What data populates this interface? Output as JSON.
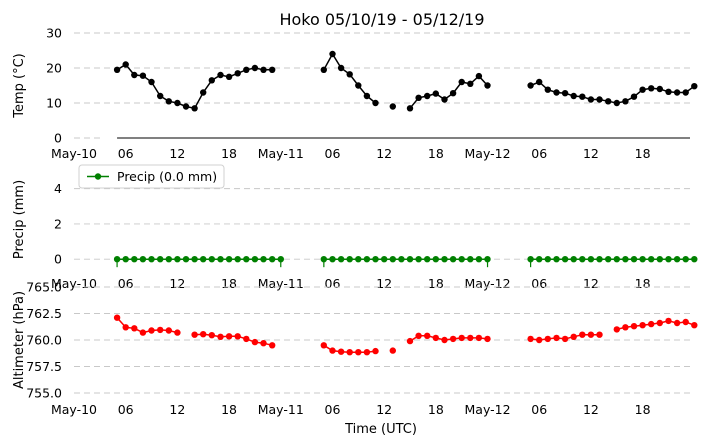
{
  "chart_data": {
    "type": "line",
    "title": "Hoko 05/10/19 - 05/12/19",
    "xlabel": "Time (UTC)",
    "x_tick_labels": [
      "May-10",
      "06",
      "12",
      "18",
      "May-11",
      "06",
      "12",
      "18",
      "May-12",
      "06",
      "12",
      "18"
    ],
    "x_tick_hours": [
      0,
      6,
      12,
      18,
      24,
      30,
      36,
      42,
      48,
      54,
      60,
      66
    ],
    "xlim_hours": [
      0,
      71.5
    ],
    "time_unit": "hours since May-10 00:00 UTC",
    "panels": [
      {
        "name": "temp",
        "ylabel": "Temp (°C)",
        "ylim": [
          0,
          30
        ],
        "yticks": [
          0,
          10,
          20,
          30
        ],
        "ytick_labels": [
          "0",
          "10",
          "20",
          "30"
        ],
        "grid": true,
        "color": "#000000",
        "baseline_segment_hours": [
          5,
          71.5
        ],
        "series": [
          {
            "name": "Temp",
            "points": [
              [
                5,
                19.5
              ],
              [
                6,
                21
              ],
              [
                7,
                18
              ],
              [
                8,
                17.8
              ],
              [
                9,
                16
              ],
              [
                10,
                12
              ],
              [
                11,
                10.5
              ],
              [
                12,
                10
              ],
              [
                13,
                9
              ],
              [
                14,
                8.5
              ],
              [
                15,
                13
              ],
              [
                16,
                16.5
              ],
              [
                17,
                18
              ],
              [
                18,
                17.5
              ],
              [
                19,
                18.5
              ],
              [
                20,
                19.5
              ],
              [
                21,
                20
              ],
              [
                22,
                19.5
              ],
              [
                23,
                19.5
              ],
              null,
              [
                29,
                19.5
              ],
              [
                30,
                24
              ],
              [
                31,
                20
              ],
              [
                32,
                18.2
              ],
              [
                33,
                15
              ],
              [
                34,
                12
              ],
              [
                35,
                10
              ],
              null,
              [
                37,
                9
              ],
              null,
              [
                39,
                8.5
              ],
              [
                40,
                11.5
              ],
              [
                41,
                12
              ],
              [
                42,
                12.7
              ],
              [
                43,
                11
              ],
              [
                44,
                12.8
              ],
              [
                45,
                16
              ],
              [
                46,
                15.5
              ],
              [
                47,
                17.7
              ],
              [
                48,
                15
              ],
              null,
              [
                53,
                15
              ],
              [
                54,
                16
              ],
              [
                55,
                13.8
              ],
              [
                56,
                13
              ],
              [
                57,
                12.8
              ],
              [
                58,
                12
              ],
              [
                59,
                11.8
              ],
              [
                60,
                11
              ],
              [
                61,
                11
              ],
              [
                62,
                10.5
              ],
              [
                63,
                10
              ],
              [
                64,
                10.5
              ],
              [
                65,
                11.8
              ],
              [
                66,
                13.8
              ],
              [
                67,
                14.2
              ],
              [
                68,
                14
              ],
              [
                69,
                13.2
              ],
              [
                70,
                13
              ],
              [
                71,
                13
              ],
              [
                72,
                14.8
              ]
            ]
          }
        ]
      },
      {
        "name": "precip",
        "ylabel": "Precip (mm)",
        "ylim": [
          -0.5,
          5
        ],
        "yticks": [
          0,
          2,
          4
        ],
        "ytick_labels": [
          "0",
          "2",
          "4"
        ],
        "grid": true,
        "color": "#008000",
        "legend": {
          "label": "Precip (0.0 mm)",
          "placement": "upper-left"
        },
        "series": [
          {
            "name": "Precip",
            "points": [
              [
                5,
                0
              ],
              [
                6,
                0
              ],
              [
                7,
                0
              ],
              [
                8,
                0
              ],
              [
                9,
                0
              ],
              [
                10,
                0
              ],
              [
                11,
                0
              ],
              [
                12,
                0
              ],
              [
                13,
                0
              ],
              [
                14,
                0
              ],
              [
                15,
                0
              ],
              [
                16,
                0
              ],
              [
                17,
                0
              ],
              [
                18,
                0
              ],
              [
                19,
                0
              ],
              [
                20,
                0
              ],
              [
                21,
                0
              ],
              [
                22,
                0
              ],
              [
                23,
                0
              ],
              [
                24,
                0
              ],
              null,
              [
                29,
                0
              ],
              [
                30,
                0
              ],
              [
                31,
                0
              ],
              [
                32,
                0
              ],
              [
                33,
                0
              ],
              [
                34,
                0
              ],
              [
                35,
                0
              ],
              [
                36,
                0
              ],
              [
                37,
                0
              ],
              [
                38,
                0
              ],
              [
                39,
                0
              ],
              [
                40,
                0
              ],
              [
                41,
                0
              ],
              [
                42,
                0
              ],
              [
                43,
                0
              ],
              [
                44,
                0
              ],
              [
                45,
                0
              ],
              [
                46,
                0
              ],
              [
                47,
                0
              ],
              [
                48,
                0
              ],
              null,
              [
                53,
                0
              ],
              [
                54,
                0
              ],
              [
                55,
                0
              ],
              [
                56,
                0
              ],
              [
                57,
                0
              ],
              [
                58,
                0
              ],
              [
                59,
                0
              ],
              [
                60,
                0
              ],
              [
                61,
                0
              ],
              [
                62,
                0
              ],
              [
                63,
                0
              ],
              [
                64,
                0
              ],
              [
                65,
                0
              ],
              [
                66,
                0
              ],
              [
                67,
                0
              ],
              [
                68,
                0
              ],
              [
                69,
                0
              ],
              [
                70,
                0
              ],
              [
                71,
                0
              ],
              [
                72,
                0
              ]
            ]
          }
        ],
        "accent_ticks_hours": [
          5,
          24,
          29,
          48,
          53
        ]
      },
      {
        "name": "altimeter",
        "ylabel": "Altimeter (hPa)",
        "ylim": [
          755.0,
          765.0
        ],
        "yticks": [
          755.0,
          757.5,
          760.0,
          762.5,
          765.0
        ],
        "ytick_labels": [
          "755.0",
          "757.5",
          "760.0",
          "762.5",
          "765.0"
        ],
        "grid": true,
        "color": "#ff0000",
        "series": [
          {
            "name": "Altimeter",
            "points": [
              [
                5,
                762.1
              ],
              [
                6,
                761.2
              ],
              [
                7,
                761.1
              ],
              [
                8,
                760.7
              ],
              [
                9,
                760.9
              ],
              [
                10,
                760.95
              ],
              [
                11,
                760.9
              ],
              [
                12,
                760.7
              ],
              null,
              [
                14,
                760.5
              ],
              [
                15,
                760.55
              ],
              [
                16,
                760.45
              ],
              [
                17,
                760.3
              ],
              [
                18,
                760.35
              ],
              [
                19,
                760.35
              ],
              [
                20,
                760.1
              ],
              [
                21,
                759.8
              ],
              [
                22,
                759.7
              ],
              [
                23,
                759.5
              ],
              null,
              [
                29,
                759.5
              ],
              [
                30,
                759.0
              ],
              [
                31,
                758.9
              ],
              [
                32,
                758.85
              ],
              [
                33,
                758.85
              ],
              [
                34,
                758.85
              ],
              [
                35,
                758.95
              ],
              null,
              [
                37,
                759.0
              ],
              null,
              [
                39,
                759.9
              ],
              [
                40,
                760.4
              ],
              [
                41,
                760.4
              ],
              [
                42,
                760.2
              ],
              [
                43,
                760.0
              ],
              [
                44,
                760.1
              ],
              [
                45,
                760.2
              ],
              [
                46,
                760.2
              ],
              [
                47,
                760.2
              ],
              [
                48,
                760.1
              ],
              null,
              [
                53,
                760.1
              ],
              [
                54,
                760.0
              ],
              [
                55,
                760.1
              ],
              [
                56,
                760.2
              ],
              [
                57,
                760.1
              ],
              [
                58,
                760.3
              ],
              [
                59,
                760.5
              ],
              [
                60,
                760.5
              ],
              [
                61,
                760.5
              ],
              null,
              [
                63,
                761.0
              ],
              [
                64,
                761.2
              ],
              [
                65,
                761.3
              ],
              [
                66,
                761.4
              ],
              [
                67,
                761.5
              ],
              [
                68,
                761.6
              ],
              [
                69,
                761.8
              ],
              [
                70,
                761.6
              ],
              [
                71,
                761.7
              ],
              [
                72,
                761.4
              ]
            ]
          }
        ]
      }
    ]
  }
}
